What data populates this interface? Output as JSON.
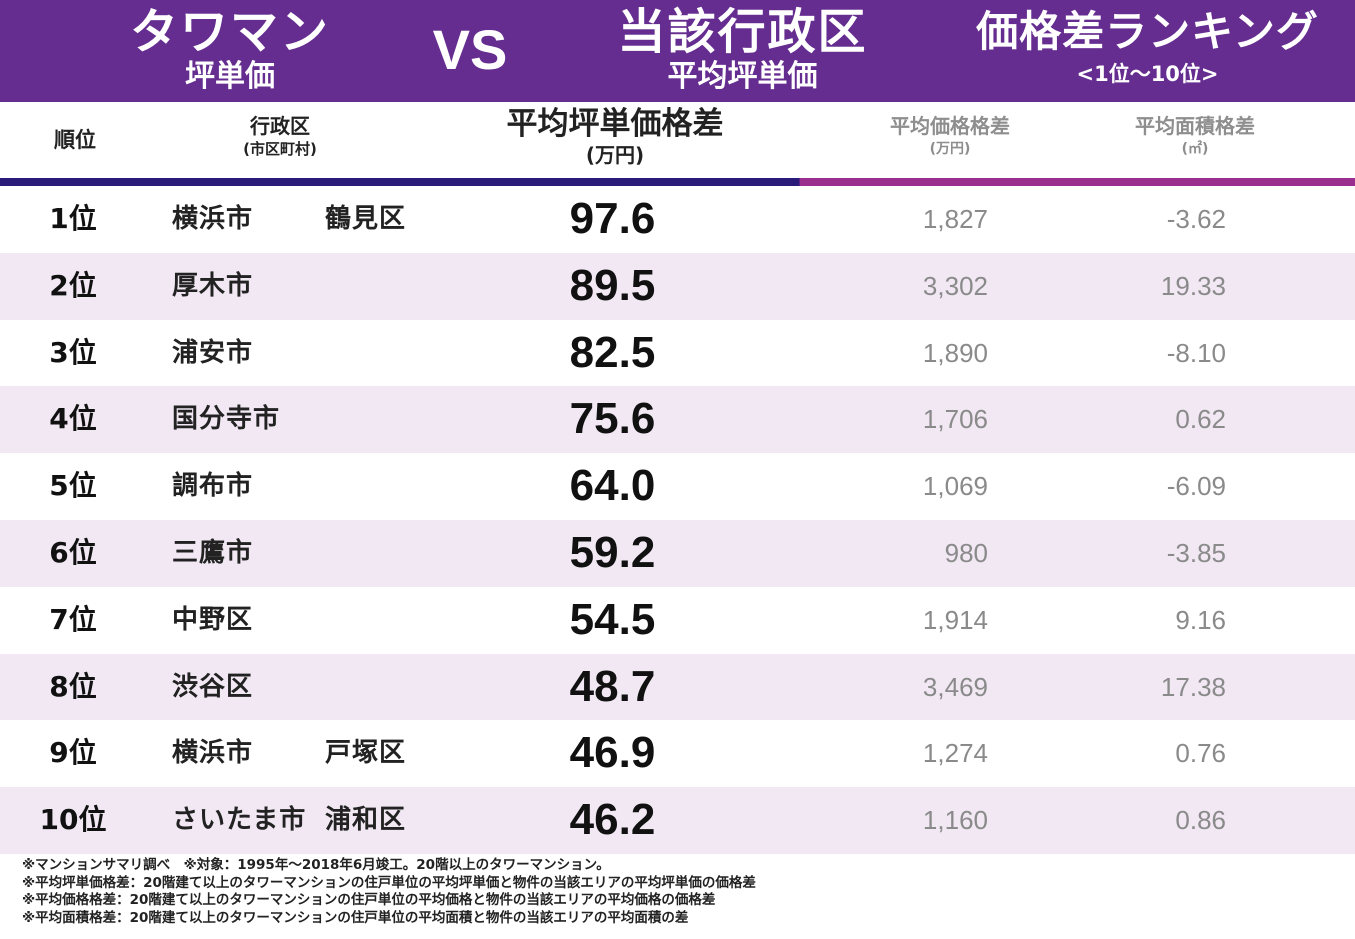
{
  "banner": {
    "left_main": "タワマン",
    "left_sub": "坪単価",
    "vs": "VS",
    "center_main": "当該行政区",
    "center_sub": "平均坪単価",
    "right_main": "価格差ランキング",
    "right_sub": "<1位〜10位>"
  },
  "columns": {
    "rank": "順位",
    "ward": "行政区",
    "ward_sub": "(市区町村)",
    "diff": "平均坪単価格差",
    "diff_unit": "(万円)",
    "price": "平均価格格差",
    "price_unit": "(万円)",
    "area": "平均面積格差",
    "area_unit": "(㎡)"
  },
  "rows": [
    {
      "rank": "1位",
      "city": "横浜市",
      "ward": "鶴見区",
      "diff": "97.6",
      "price": "1,827",
      "area": "-3.62"
    },
    {
      "rank": "2位",
      "city": "厚木市",
      "ward": "",
      "diff": "89.5",
      "price": "3,302",
      "area": "19.33"
    },
    {
      "rank": "3位",
      "city": "浦安市",
      "ward": "",
      "diff": "82.5",
      "price": "1,890",
      "area": "-8.10"
    },
    {
      "rank": "4位",
      "city": "国分寺市",
      "ward": "",
      "diff": "75.6",
      "price": "1,706",
      "area": "0.62"
    },
    {
      "rank": "5位",
      "city": "調布市",
      "ward": "",
      "diff": "64.0",
      "price": "1,069",
      "area": "-6.09"
    },
    {
      "rank": "6位",
      "city": "三鷹市",
      "ward": "",
      "diff": "59.2",
      "price": "980",
      "area": "-3.85"
    },
    {
      "rank": "7位",
      "city": "中野区",
      "ward": "",
      "diff": "54.5",
      "price": "1,914",
      "area": "9.16"
    },
    {
      "rank": "8位",
      "city": "渋谷区",
      "ward": "",
      "diff": "48.7",
      "price": "3,469",
      "area": "17.38"
    },
    {
      "rank": "9位",
      "city": "横浜市",
      "ward": "戸塚区",
      "diff": "46.9",
      "price": "1,274",
      "area": "0.76"
    },
    {
      "rank": "10位",
      "city": "さいたま市",
      "ward": "浦和区",
      "diff": "46.2",
      "price": "1,160",
      "area": "0.86"
    }
  ],
  "notes": [
    "※マンションサマリ調べ　※対象：1995年〜2018年6月竣工。20階以上のタワーマンション。",
    "※平均坪単価格差：20階建て以上のタワーマンションの住戸単位の平均坪単価と物件の当該エリアの平均坪単価の価格差",
    "※平均価格格差：20階建て以上のタワーマンションの住戸単位の平均価格と物件の当該エリアの平均価格の価格差",
    "※平均面積格差：20階建て以上のタワーマンションの住戸単位の平均面積と物件の当該エリアの平均面積の差"
  ]
}
